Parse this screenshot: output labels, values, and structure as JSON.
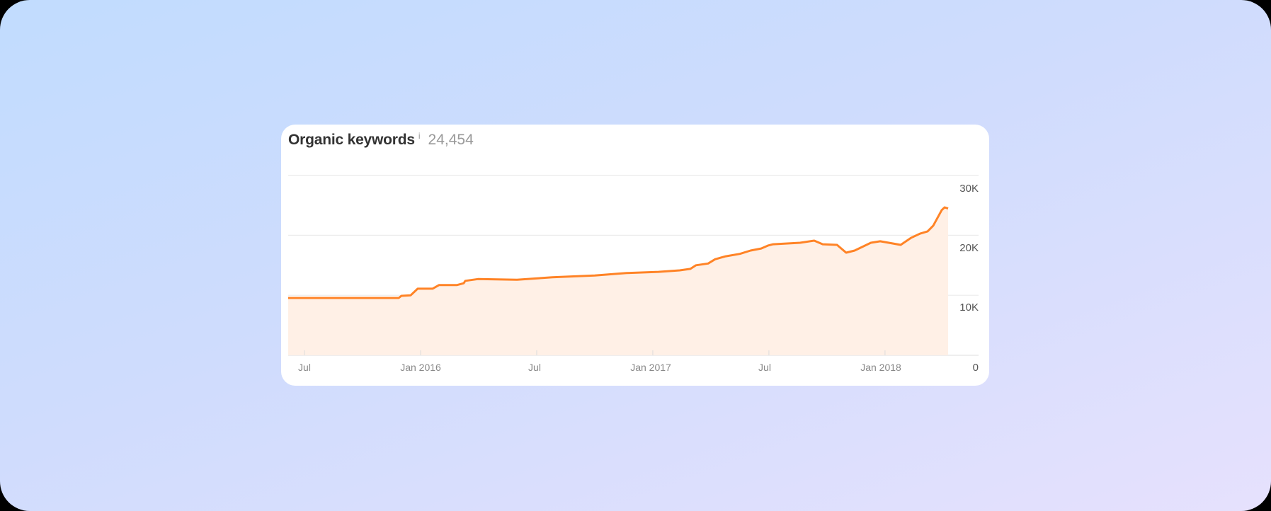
{
  "card": {
    "title": "Organic keywords",
    "info_icon": "i",
    "value": "24,454"
  },
  "colors": {
    "line": "#ff8326",
    "fill": "#fff0e6",
    "grid": "#ebebeb",
    "background_start": "#c1dcfe",
    "background_end": "#e6e1fd"
  },
  "axes": {
    "y_labels": [
      "30K",
      "20K",
      "10K",
      "0"
    ],
    "x_labels": [
      "Jul",
      "Jan 2016",
      "Jul",
      "Jan 2017",
      "Jul",
      "Jan 2018"
    ]
  },
  "chart_data": {
    "type": "area",
    "title": "Organic keywords",
    "subtitle": "24,454",
    "xlabel": "",
    "ylabel": "",
    "ylim": [
      0,
      30000
    ],
    "grid": true,
    "y_axis_position": "right",
    "x_ticks": [
      {
        "label": "Jul",
        "month_offset": 0
      },
      {
        "label": "Jan 2016",
        "month_offset": 6
      },
      {
        "label": "Jul",
        "month_offset": 12
      },
      {
        "label": "Jan 2017",
        "month_offset": 18
      },
      {
        "label": "Jul",
        "month_offset": 24
      },
      {
        "label": "Jan 2018",
        "month_offset": 30
      }
    ],
    "y_ticks": [
      0,
      10000,
      20000,
      30000
    ],
    "x_unit": "months since Jul 2015",
    "series": [
      {
        "name": "Organic keywords",
        "points": [
          [
            -0.84,
            9550
          ],
          [
            4.87,
            9550
          ],
          [
            5.01,
            9900
          ],
          [
            5.49,
            10000
          ],
          [
            5.85,
            11100
          ],
          [
            6.62,
            11100
          ],
          [
            6.95,
            11700
          ],
          [
            7.87,
            11700
          ],
          [
            8.23,
            12000
          ],
          [
            8.31,
            12400
          ],
          [
            8.96,
            12700
          ],
          [
            10.98,
            12600
          ],
          [
            12.81,
            13000
          ],
          [
            15.0,
            13300
          ],
          [
            16.65,
            13700
          ],
          [
            18.29,
            13900
          ],
          [
            19.39,
            14150
          ],
          [
            19.94,
            14400
          ],
          [
            20.23,
            15000
          ],
          [
            20.86,
            15300
          ],
          [
            21.22,
            16000
          ],
          [
            21.77,
            16500
          ],
          [
            22.5,
            16900
          ],
          [
            23.05,
            17450
          ],
          [
            23.6,
            17800
          ],
          [
            23.97,
            18300
          ],
          [
            24.22,
            18500
          ],
          [
            25.61,
            18750
          ],
          [
            26.34,
            19100
          ],
          [
            26.78,
            18500
          ],
          [
            27.52,
            18400
          ],
          [
            27.99,
            17100
          ],
          [
            28.43,
            17450
          ],
          [
            29.27,
            18750
          ],
          [
            29.75,
            19000
          ],
          [
            30.81,
            18400
          ],
          [
            31.36,
            19600
          ],
          [
            31.83,
            20300
          ],
          [
            32.2,
            20650
          ],
          [
            32.49,
            21600
          ],
          [
            32.93,
            24200
          ],
          [
            33.08,
            24650
          ],
          [
            33.26,
            24454
          ]
        ]
      }
    ]
  }
}
